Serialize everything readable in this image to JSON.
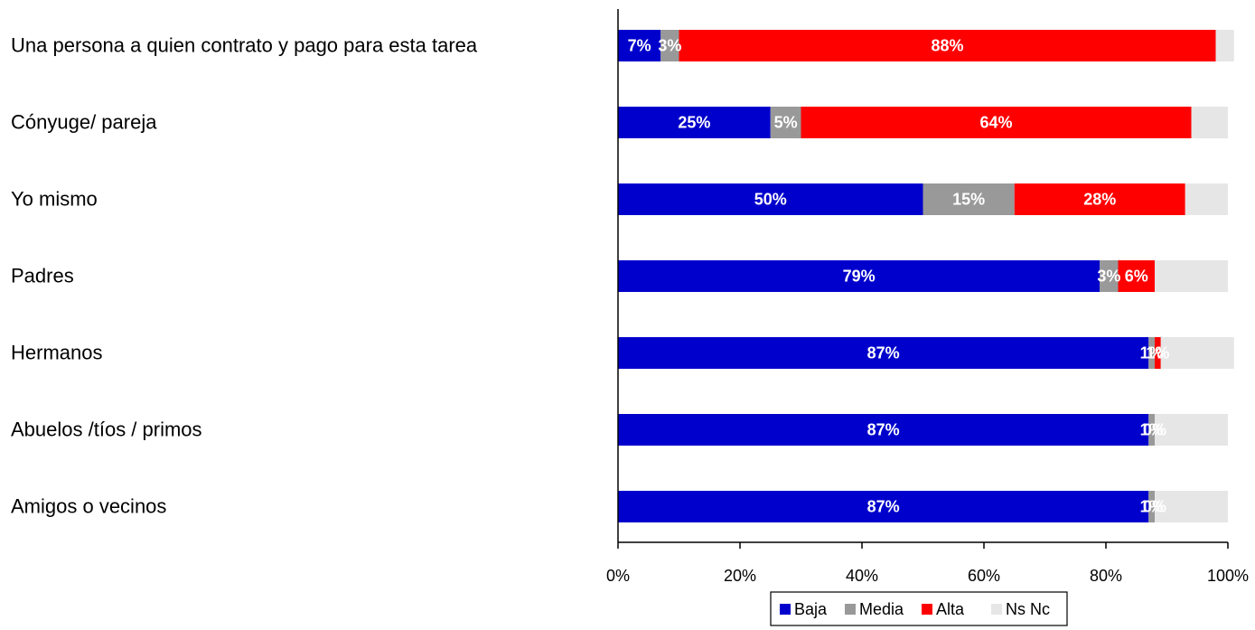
{
  "chart_data": {
    "type": "bar",
    "orientation": "horizontal",
    "stacked": true,
    "categories": [
      "Una persona a quien contrato y pago para esta tarea",
      "Cónyuge/ pareja",
      "Yo mismo",
      "Padres",
      "Hermanos",
      "Abuelos /tíos / primos",
      "Amigos o vecinos"
    ],
    "series": [
      {
        "name": "Baja",
        "color": "#0000cc",
        "values": [
          7,
          25,
          50,
          79,
          87,
          87,
          87
        ],
        "labels": [
          "7%",
          "25%",
          "50%",
          "79%",
          "87%",
          "87%",
          "87%"
        ]
      },
      {
        "name": "Media",
        "color": "#999999",
        "values": [
          3,
          5,
          15,
          3,
          1,
          1,
          1
        ],
        "labels": [
          "3%",
          "5%",
          "15%",
          "3%",
          "1%",
          "1%",
          "1%"
        ]
      },
      {
        "name": "Alta",
        "color": "#ff0000",
        "values": [
          88,
          64,
          28,
          6,
          1,
          0,
          0
        ],
        "labels": [
          "88%",
          "64%",
          "28%",
          "6%",
          "1%",
          "0%",
          "0%"
        ]
      },
      {
        "name": "Ns Nc",
        "color": "#e6e6e6",
        "values": [
          3,
          6,
          7,
          12,
          12,
          12,
          12
        ],
        "labels": [
          "",
          "",
          "",
          "",
          "",
          "",
          ""
        ]
      }
    ],
    "xlim": [
      0,
      100
    ],
    "xticks": [
      "0%",
      "20%",
      "40%",
      "60%",
      "80%",
      "100%"
    ],
    "grid": false,
    "legend_position": "bottom"
  }
}
